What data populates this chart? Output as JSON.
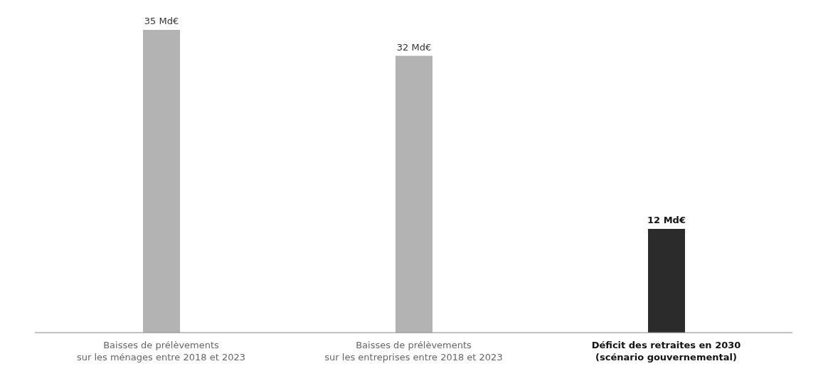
{
  "chart_data": {
    "type": "bar",
    "categories": [
      "Baisses de prélèvements\nsur les ménages entre 2018 et 2023",
      "Baisses de prélèvements\nsur les entreprises entre 2018 et 2023",
      "Déficit des retraites en 2030\n(scénario gouvernemental)"
    ],
    "values": [
      35,
      32,
      12
    ],
    "colors": [
      "#b3b3b3",
      "#b3b3b3",
      "#2b2b2b"
    ],
    "value_labels": [
      "35 Md€",
      "32 Md€",
      "12 Md€"
    ]
  }
}
